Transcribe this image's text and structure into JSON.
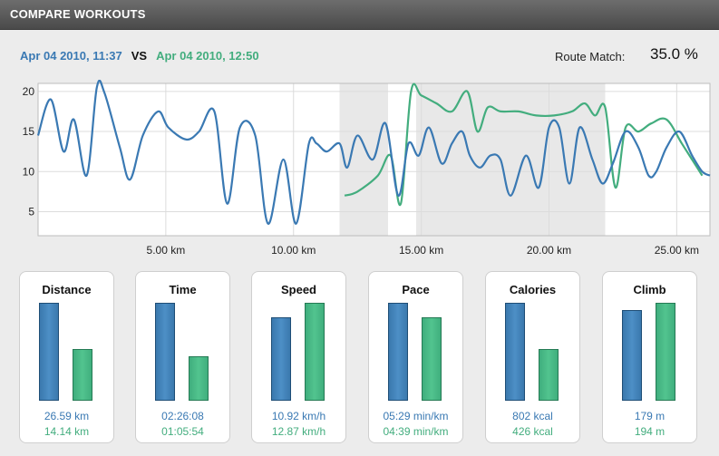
{
  "header": {
    "title": "COMPARE WORKOUTS"
  },
  "comparison": {
    "workout_a": "Apr 04 2010, 11:37",
    "vs": "VS",
    "workout_b": "Apr 04 2010, 12:50",
    "route_match_label": "Route Match:",
    "route_match_value": "35.0 %"
  },
  "colors": {
    "workout_a": "#3a79b3",
    "workout_b": "#43ad7e",
    "highlight": "#e8e8e8"
  },
  "chart_data": {
    "type": "line",
    "title": "",
    "xlabel": "",
    "ylabel": "",
    "xlim": [
      0,
      26.3
    ],
    "ylim": [
      2,
      21
    ],
    "xticks": [
      5,
      10,
      15,
      20,
      25
    ],
    "xtick_labels": [
      "5.00 km",
      "10.00 km",
      "15.00 km",
      "20.00 km",
      "25.00 km"
    ],
    "yticks": [
      5,
      10,
      15,
      20
    ],
    "ytick_labels": [
      "5",
      "10",
      "15",
      "20"
    ],
    "grid": true,
    "highlight_ranges": [
      [
        11.8,
        13.7
      ],
      [
        14.8,
        22.2
      ]
    ],
    "series": [
      {
        "x": [
          0,
          0.5,
          1.0,
          1.4,
          1.9,
          2.3,
          2.6,
          3.2,
          3.6,
          4.1,
          4.7,
          5.1,
          5.8,
          6.3,
          6.9,
          7.4,
          7.9,
          8.5,
          9.0,
          9.6,
          10.1,
          10.6,
          10.9,
          11.3,
          11.8,
          12.1,
          12.5,
          13.1,
          13.6,
          14.1,
          14.5,
          14.9,
          15.3,
          15.8,
          16.2,
          16.6,
          16.9,
          17.3,
          17.7,
          18.1,
          18.5,
          19.1,
          19.6,
          20.0,
          20.4,
          20.8,
          21.2,
          21.7,
          22.1,
          22.5,
          23.0,
          23.5,
          23.9,
          24.2,
          24.6,
          25.1,
          25.6,
          26.0,
          26.3
        ],
        "values": [
          14.5,
          19.0,
          12.5,
          16.5,
          9.5,
          20.5,
          19.8,
          13.0,
          9.0,
          14.5,
          17.5,
          15.5,
          14.0,
          15.0,
          17.5,
          6.0,
          15.5,
          14.5,
          3.5,
          11.5,
          3.5,
          13.5,
          13.5,
          12.5,
          13.5,
          10.5,
          14.5,
          11.5,
          16.0,
          7.0,
          13.5,
          12.0,
          15.5,
          11.0,
          13.5,
          15.0,
          12.0,
          10.5,
          12.0,
          11.5,
          7.0,
          12.0,
          8.0,
          15.5,
          15.5,
          8.5,
          15.5,
          11.5,
          8.5,
          11.0,
          15.0,
          13.0,
          9.5,
          10.0,
          13.0,
          15.0,
          12.0,
          10.0,
          9.5
        ]
      },
      {
        "x": [
          12.0,
          12.5,
          13.3,
          13.8,
          14.2,
          14.6,
          15.0,
          15.6,
          16.2,
          16.8,
          17.2,
          17.6,
          18.1,
          18.8,
          19.5,
          20.2,
          20.9,
          21.4,
          21.8,
          22.2,
          22.6,
          23.0,
          23.5,
          24.0,
          24.6,
          25.2,
          25.7,
          26.0
        ],
        "values": [
          7.0,
          7.5,
          9.5,
          12.0,
          6.0,
          20.0,
          19.5,
          18.5,
          17.5,
          20.0,
          15.0,
          18.0,
          17.5,
          17.5,
          17.0,
          17.0,
          17.5,
          18.5,
          17.0,
          18.0,
          8.0,
          15.5,
          15.0,
          16.0,
          16.5,
          13.5,
          11.0,
          9.5
        ]
      }
    ]
  },
  "stats": [
    {
      "label": "Distance",
      "a": 26.59,
      "b": 14.14,
      "a_text": "26.59 km",
      "b_text": "14.14 km"
    },
    {
      "label": "Time",
      "a": 8768,
      "b": 3954,
      "a_text": "02:26:08",
      "b_text": "01:05:54"
    },
    {
      "label": "Speed",
      "a": 10.92,
      "b": 12.87,
      "a_text": "10.92 km/h",
      "b_text": "12.87 km/h"
    },
    {
      "label": "Pace",
      "a": 329,
      "b": 279,
      "a_text": "05:29 min/km",
      "b_text": "04:39 min/km"
    },
    {
      "label": "Calories",
      "a": 802,
      "b": 426,
      "a_text": "802 kcal",
      "b_text": "426 kcal"
    },
    {
      "label": "Climb",
      "a": 179,
      "b": 194,
      "a_text": "179 m",
      "b_text": "194 m"
    }
  ]
}
